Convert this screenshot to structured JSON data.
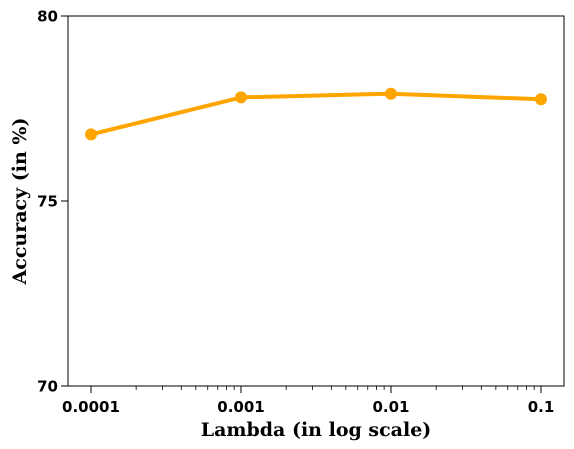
{
  "chart_data": {
    "type": "line",
    "x": [
      0.0001,
      0.001,
      0.01,
      0.1
    ],
    "x_tick_labels": [
      "0.0001",
      "0.001",
      "0.01",
      "0.1"
    ],
    "xscale": "log",
    "xlabel": "Lambda (in log scale)",
    "ylabel": "Accuracy (in %)",
    "ylim": [
      70,
      80
    ],
    "y_ticks": [
      70,
      75,
      80
    ],
    "grid": false,
    "series": [
      {
        "values": [
          76.8,
          77.8,
          77.9,
          77.75
        ],
        "color": "#FFA500",
        "marker": "circle"
      }
    ]
  }
}
